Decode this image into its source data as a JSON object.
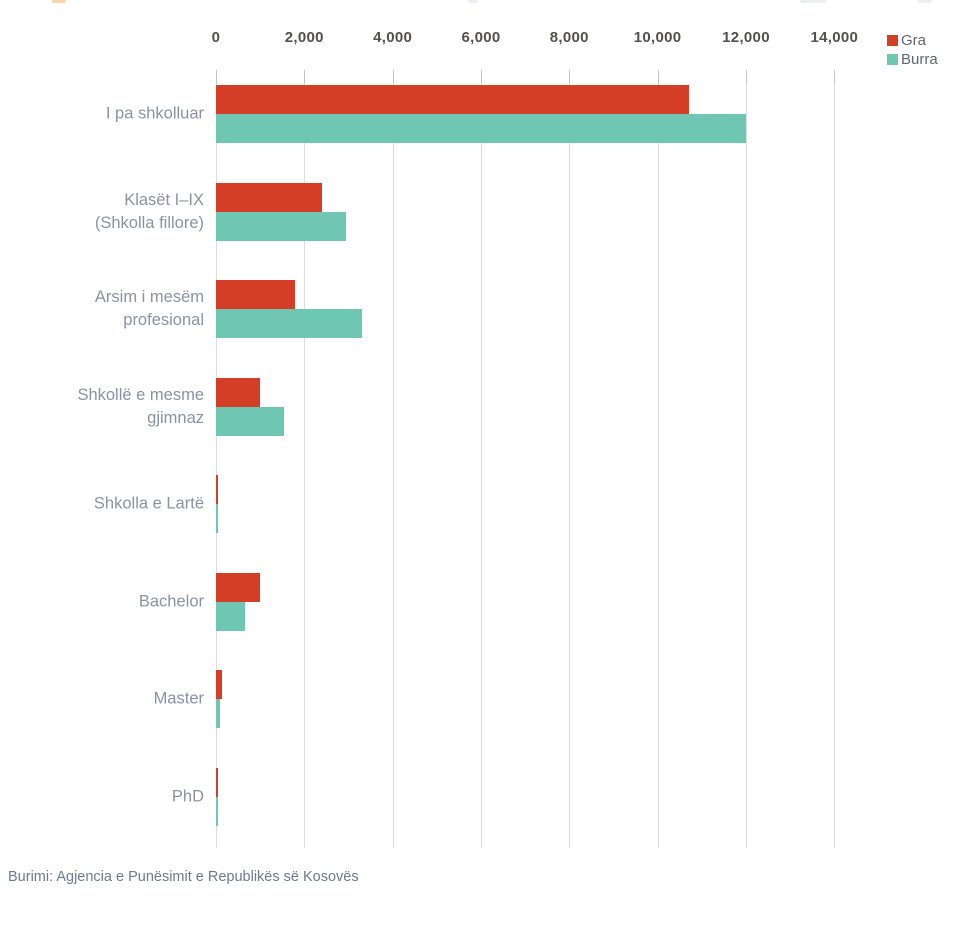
{
  "chart_data": {
    "type": "bar",
    "orientation": "horizontal",
    "title": "",
    "categories": [
      "I pa shkolluar",
      "Klasët I–IX (Shkolla fillore)",
      "Arsim i mesëm profesional",
      "Shkollë e mesme gjimnaz",
      "Shkolla e Lartë",
      "Bachelor",
      "Master",
      "PhD"
    ],
    "category_label_lines": [
      [
        "I pa shkolluar"
      ],
      [
        "Klasët I–IX",
        "(Shkolla fillore)"
      ],
      [
        "Arsim i mesëm",
        "profesional"
      ],
      [
        "Shkollë e mesme",
        "gjimnaz"
      ],
      [
        "Shkolla e Lartë"
      ],
      [
        "Bachelor"
      ],
      [
        "Master"
      ],
      [
        "PhD"
      ]
    ],
    "series": [
      {
        "name": "Gra",
        "color": "#d43d26",
        "values": [
          10700,
          2400,
          1800,
          1000,
          50,
          1000,
          140,
          40
        ]
      },
      {
        "name": "Burra",
        "color": "#6ec6b3",
        "values": [
          12000,
          2950,
          3300,
          1550,
          40,
          650,
          90,
          35
        ]
      }
    ],
    "x_axis": {
      "position": "top",
      "min": 0,
      "max": 14000,
      "tick_interval": 2000,
      "tick_labels": [
        "0",
        "2,000",
        "4,000",
        "6,000",
        "8,000",
        "10,000",
        "12,000",
        "14,000"
      ]
    },
    "grid": true,
    "legend_position": "top-right",
    "source_note": "Burimi: Agjencia e Punësimit e Republikës së Kosovës"
  }
}
